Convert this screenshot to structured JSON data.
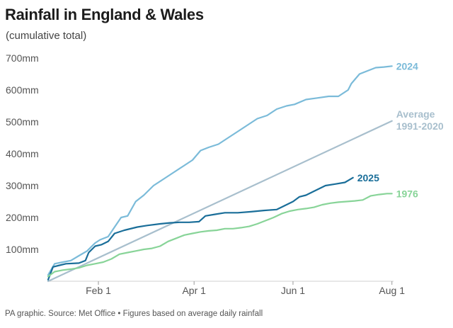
{
  "chart_data": {
    "type": "line",
    "title": "Rainfall in England & Wales",
    "subtitle": "(cumulative total)",
    "footer": "PA graphic. Source: Met Office • Figures based on average daily rainfall",
    "x_unit": "day of year",
    "xlim": [
      1,
      214
    ],
    "ylim": [
      0,
      700
    ],
    "y_ticks": [
      {
        "value": 100,
        "label": "100mm"
      },
      {
        "value": 200,
        "label": "200mm"
      },
      {
        "value": 300,
        "label": "300mm"
      },
      {
        "value": 400,
        "label": "400mm"
      },
      {
        "value": 500,
        "label": "500mm"
      },
      {
        "value": 600,
        "label": "600mm"
      },
      {
        "value": 700,
        "label": "700mm"
      }
    ],
    "x_ticks": [
      {
        "value": 32,
        "label": "Feb 1"
      },
      {
        "value": 91,
        "label": "Apr 1"
      },
      {
        "value": 152,
        "label": "Jun 1"
      },
      {
        "value": 213,
        "label": "Aug 1"
      }
    ],
    "grid": false,
    "series": [
      {
        "name": "2024",
        "label_lines": [
          "2024"
        ],
        "color": "#7bbbd9",
        "x": [
          1,
          5,
          10,
          15,
          20,
          25,
          30,
          33,
          38,
          42,
          46,
          50,
          55,
          60,
          66,
          72,
          78,
          84,
          90,
          95,
          100,
          106,
          112,
          118,
          124,
          130,
          136,
          142,
          148,
          153,
          160,
          167,
          174,
          180,
          186,
          188,
          193,
          198,
          203,
          208,
          213
        ],
        "y": [
          20,
          55,
          60,
          65,
          80,
          95,
          120,
          130,
          140,
          170,
          200,
          205,
          250,
          270,
          300,
          320,
          340,
          360,
          380,
          410,
          420,
          430,
          450,
          470,
          490,
          510,
          520,
          540,
          550,
          555,
          570,
          575,
          580,
          580,
          600,
          620,
          650,
          660,
          670,
          672,
          675
        ]
      },
      {
        "name": "Average 1991-2020",
        "label_lines": [
          "Average",
          "1991-2020"
        ],
        "color": "#a8bfcd",
        "x": [
          1,
          213
        ],
        "y": [
          0,
          503
        ]
      },
      {
        "name": "2025",
        "label_lines": [
          "2025"
        ],
        "color": "#1a6e99",
        "x": [
          1,
          4,
          8,
          12,
          20,
          24,
          26,
          30,
          34,
          38,
          42,
          48,
          56,
          62,
          70,
          76,
          82,
          88,
          94,
          98,
          104,
          110,
          118,
          126,
          134,
          142,
          146,
          152,
          156,
          160,
          166,
          172,
          178,
          184,
          189
        ],
        "y": [
          5,
          45,
          50,
          55,
          57,
          65,
          90,
          110,
          115,
          125,
          150,
          160,
          170,
          175,
          180,
          183,
          185,
          185,
          187,
          205,
          210,
          215,
          215,
          218,
          222,
          225,
          235,
          250,
          265,
          270,
          285,
          300,
          305,
          310,
          325
        ]
      },
      {
        "name": "1976",
        "label_lines": [
          "1976"
        ],
        "color": "#88d498",
        "x": [
          1,
          5,
          10,
          15,
          20,
          25,
          30,
          35,
          40,
          45,
          50,
          55,
          60,
          65,
          70,
          75,
          80,
          85,
          90,
          95,
          100,
          105,
          110,
          115,
          120,
          125,
          130,
          135,
          140,
          145,
          150,
          155,
          160,
          165,
          170,
          175,
          180,
          185,
          190,
          195,
          200,
          205,
          210,
          213
        ],
        "y": [
          15,
          30,
          35,
          38,
          42,
          50,
          55,
          60,
          70,
          85,
          90,
          95,
          100,
          103,
          110,
          125,
          135,
          145,
          150,
          155,
          158,
          160,
          165,
          165,
          168,
          172,
          180,
          190,
          200,
          212,
          220,
          225,
          228,
          232,
          240,
          245,
          248,
          250,
          252,
          255,
          268,
          272,
          275,
          275
        ]
      }
    ]
  }
}
